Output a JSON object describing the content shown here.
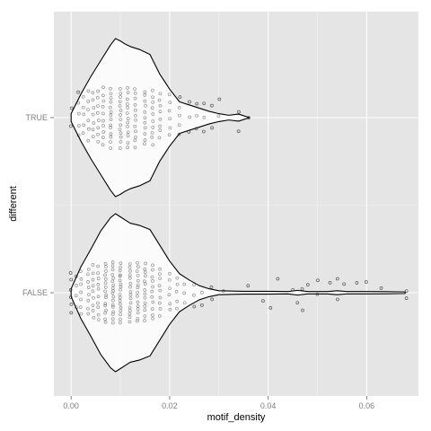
{
  "chart_data": {
    "type": "violin",
    "orientation": "horizontal",
    "xlabel": "motif_density",
    "ylabel": "different",
    "xlim": [
      -0.0035,
      0.0705
    ],
    "x_ticks": [
      {
        "value": 0.0,
        "label": "0.00"
      },
      {
        "value": 0.02,
        "label": "0.02"
      },
      {
        "value": 0.04,
        "label": "0.04"
      },
      {
        "value": 0.06,
        "label": "0.06"
      }
    ],
    "categories": [
      "TRUE",
      "FALSE"
    ],
    "grid": true,
    "legend": "none",
    "colors": {
      "panel": "#e5e5e5",
      "grid_major": "#ffffff",
      "grid_minor": "#f2f2f2",
      "violin_fill": "#ffffff",
      "violin_line": "#000000",
      "points": "#333333",
      "tick_label": "#7f7f7f"
    },
    "series": [
      {
        "category": "TRUE",
        "density_profile": [
          [
            0.0,
            0.05
          ],
          [
            0.002,
            0.3
          ],
          [
            0.004,
            0.52
          ],
          [
            0.006,
            0.72
          ],
          [
            0.008,
            0.92
          ],
          [
            0.009,
            1.0
          ],
          [
            0.01,
            0.97
          ],
          [
            0.011,
            0.93
          ],
          [
            0.012,
            0.9
          ],
          [
            0.014,
            0.86
          ],
          [
            0.016,
            0.8
          ],
          [
            0.018,
            0.55
          ],
          [
            0.02,
            0.36
          ],
          [
            0.022,
            0.2
          ],
          [
            0.024,
            0.16
          ],
          [
            0.026,
            0.12
          ],
          [
            0.028,
            0.08
          ],
          [
            0.03,
            0.05
          ],
          [
            0.032,
            0.03
          ],
          [
            0.034,
            0.045
          ],
          [
            0.0362,
            0.0
          ]
        ],
        "point_columns": [
          {
            "x": 0.0,
            "range": [
              -0.2,
              0.2
            ],
            "count": 2
          },
          {
            "x": 0.0015,
            "range": [
              -0.4,
              0.55
            ],
            "count": 5
          },
          {
            "x": 0.0025,
            "range": [
              -0.35,
              0.45
            ],
            "count": 5
          },
          {
            "x": 0.0035,
            "range": [
              -0.5,
              0.6
            ],
            "count": 6
          },
          {
            "x": 0.0045,
            "range": [
              -0.45,
              0.55
            ],
            "count": 7
          },
          {
            "x": 0.0055,
            "range": [
              -0.55,
              0.6
            ],
            "count": 8
          },
          {
            "x": 0.0065,
            "range": [
              -0.6,
              0.65
            ],
            "count": 10
          },
          {
            "x": 0.008,
            "range": [
              -0.65,
              0.65
            ],
            "count": 14
          },
          {
            "x": 0.01,
            "range": [
              -0.65,
              0.65
            ],
            "count": 14
          },
          {
            "x": 0.0115,
            "range": [
              -0.65,
              0.65
            ],
            "count": 13
          },
          {
            "x": 0.013,
            "range": [
              -0.65,
              0.65
            ],
            "count": 12
          },
          {
            "x": 0.015,
            "range": [
              -0.6,
              0.6
            ],
            "count": 11
          },
          {
            "x": 0.0165,
            "range": [
              -0.6,
              0.6
            ],
            "count": 10
          },
          {
            "x": 0.018,
            "range": [
              -0.45,
              0.55
            ],
            "count": 8
          },
          {
            "x": 0.02,
            "range": [
              -0.4,
              0.5
            ],
            "count": 6
          },
          {
            "x": 0.022,
            "range": [
              -0.35,
              0.45
            ],
            "count": 5
          },
          {
            "x": 0.024,
            "range": [
              -0.3,
              0.35
            ],
            "count": 3
          },
          {
            "x": 0.0255,
            "range": [
              -0.25,
              0.3
            ],
            "count": 3
          },
          {
            "x": 0.027,
            "range": [
              -0.3,
              0.3
            ],
            "count": 3
          },
          {
            "x": 0.0285,
            "range": [
              -0.2,
              0.25
            ],
            "count": 2
          },
          {
            "x": 0.03,
            "range": [
              0.05,
              0.4
            ],
            "count": 2
          },
          {
            "x": 0.034,
            "range": [
              -0.3,
              0.1
            ],
            "count": 2
          },
          {
            "x": 0.036,
            "range": [
              0.0,
              0.0
            ],
            "count": 1
          }
        ]
      },
      {
        "category": "FALSE",
        "density_profile": [
          [
            0.0,
            0.05
          ],
          [
            0.002,
            0.33
          ],
          [
            0.004,
            0.55
          ],
          [
            0.006,
            0.78
          ],
          [
            0.008,
            0.95
          ],
          [
            0.009,
            1.0
          ],
          [
            0.01,
            0.96
          ],
          [
            0.011,
            0.92
          ],
          [
            0.012,
            0.88
          ],
          [
            0.014,
            0.85
          ],
          [
            0.016,
            0.8
          ],
          [
            0.018,
            0.6
          ],
          [
            0.02,
            0.4
          ],
          [
            0.022,
            0.24
          ],
          [
            0.024,
            0.16
          ],
          [
            0.026,
            0.09
          ],
          [
            0.028,
            0.05
          ],
          [
            0.03,
            0.025
          ],
          [
            0.035,
            0.018
          ],
          [
            0.04,
            0.018
          ],
          [
            0.044,
            0.015
          ],
          [
            0.046,
            0.03
          ],
          [
            0.048,
            0.015
          ],
          [
            0.052,
            0.015
          ],
          [
            0.054,
            0.025
          ],
          [
            0.056,
            0.015
          ],
          [
            0.06,
            0.015
          ],
          [
            0.064,
            0.013
          ],
          [
            0.0678,
            0.01
          ]
        ],
        "point_columns": [
          {
            "x": 0.0,
            "range": [
              -0.45,
              0.45
            ],
            "count": 6
          },
          {
            "x": 0.001,
            "range": [
              -0.3,
              0.35
            ],
            "count": 4
          },
          {
            "x": 0.002,
            "range": [
              -0.5,
              0.5
            ],
            "count": 7
          },
          {
            "x": 0.0035,
            "range": [
              -0.5,
              0.55
            ],
            "count": 8
          },
          {
            "x": 0.0045,
            "range": [
              -0.55,
              0.6
            ],
            "count": 9
          },
          {
            "x": 0.0055,
            "range": [
              -0.6,
              0.6
            ],
            "count": 10
          },
          {
            "x": 0.007,
            "range": [
              -0.65,
              0.65
            ],
            "count": 16
          },
          {
            "x": 0.0085,
            "range": [
              -0.65,
              0.65
            ],
            "count": 18
          },
          {
            "x": 0.01,
            "range": [
              -0.65,
              0.65
            ],
            "count": 18
          },
          {
            "x": 0.012,
            "range": [
              -0.65,
              0.65
            ],
            "count": 16
          },
          {
            "x": 0.0135,
            "range": [
              -0.65,
              0.65
            ],
            "count": 15
          },
          {
            "x": 0.015,
            "range": [
              -0.6,
              0.65
            ],
            "count": 14
          },
          {
            "x": 0.0165,
            "range": [
              -0.6,
              0.6
            ],
            "count": 11
          },
          {
            "x": 0.018,
            "range": [
              -0.5,
              0.55
            ],
            "count": 9
          },
          {
            "x": 0.02,
            "range": [
              -0.4,
              0.45
            ],
            "count": 6
          },
          {
            "x": 0.0215,
            "range": [
              -0.35,
              0.35
            ],
            "count": 5
          },
          {
            "x": 0.023,
            "range": [
              -0.25,
              0.2
            ],
            "count": 3
          },
          {
            "x": 0.025,
            "range": [
              -0.3,
              0.15
            ],
            "count": 3
          },
          {
            "x": 0.0265,
            "range": [
              -0.3,
              0.0
            ],
            "count": 2
          },
          {
            "x": 0.0285,
            "range": [
              -0.15,
              0.1
            ],
            "count": 2
          },
          {
            "x": 0.031,
            "range": [
              0.05,
              0.05
            ],
            "count": 1
          },
          {
            "x": 0.036,
            "range": [
              0.18,
              0.18
            ],
            "count": 1
          },
          {
            "x": 0.039,
            "range": [
              -0.2,
              -0.2
            ],
            "count": 1
          },
          {
            "x": 0.0405,
            "range": [
              -0.35,
              -0.35
            ],
            "count": 1
          },
          {
            "x": 0.042,
            "range": [
              0.3,
              0.3
            ],
            "count": 1
          },
          {
            "x": 0.045,
            "range": [
              0.05,
              0.05
            ],
            "count": 1
          },
          {
            "x": 0.046,
            "range": [
              -0.25,
              -0.25
            ],
            "count": 1
          },
          {
            "x": 0.047,
            "range": [
              -0.4,
              0.1
            ],
            "count": 2
          },
          {
            "x": 0.048,
            "range": [
              0.15,
              0.15
            ],
            "count": 1
          },
          {
            "x": 0.05,
            "range": [
              -0.05,
              0.25
            ],
            "count": 2
          },
          {
            "x": 0.0525,
            "range": [
              0.2,
              0.2
            ],
            "count": 1
          },
          {
            "x": 0.054,
            "range": [
              -0.15,
              0.3
            ],
            "count": 2
          },
          {
            "x": 0.0555,
            "range": [
              0.17,
              0.17
            ],
            "count": 1
          },
          {
            "x": 0.058,
            "range": [
              0.25,
              0.25
            ],
            "count": 1
          },
          {
            "x": 0.06,
            "range": [
              0.24,
              0.24
            ],
            "count": 1
          },
          {
            "x": 0.063,
            "range": [
              0.1,
              0.1
            ],
            "count": 1
          },
          {
            "x": 0.068,
            "range": [
              -0.1,
              0.05
            ],
            "count": 2
          }
        ]
      }
    ]
  }
}
